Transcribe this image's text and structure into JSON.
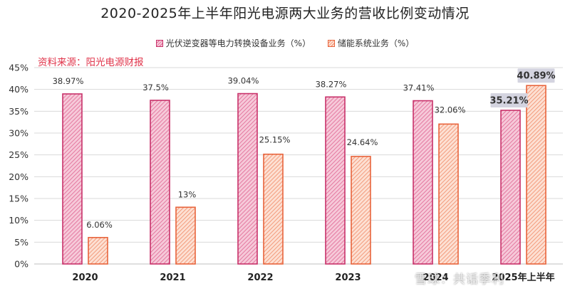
{
  "chart_data": {
    "type": "bar",
    "title": "2020-2025年上半年阳光电源两大业务的营收比例变动情况",
    "source": "资料来源：阳光电源财报",
    "watermark": "雪球：共话季利",
    "categories": [
      "2020",
      "2021",
      "2022",
      "2023",
      "2024",
      "2025年上半年"
    ],
    "series": [
      {
        "name": "光伏逆变器等电力转换设备业务（%）",
        "values": [
          38.97,
          37.5,
          39.04,
          38.27,
          37.41,
          35.21
        ],
        "labels": [
          "38.97%",
          "37.5%",
          "39.04%",
          "38.27%",
          "37.41%",
          "35.21%"
        ],
        "color": "#e06592",
        "border": "#c8326a",
        "light": "#f6c9d9"
      },
      {
        "name": "储能系统业务（%）",
        "values": [
          6.06,
          13,
          25.15,
          24.64,
          32.06,
          40.89
        ],
        "labels": [
          "6.06%",
          "13%",
          "25.15%",
          "24.64%",
          "32.06%",
          "40.89%"
        ],
        "color": "#f08a67",
        "border": "#e8643c",
        "light": "#fde0d3"
      }
    ],
    "yticks": [
      "0%",
      "5%",
      "10%",
      "15%",
      "20%",
      "25%",
      "30%",
      "35%",
      "40%",
      "45%"
    ],
    "ylim": [
      0,
      45
    ],
    "grid": true,
    "legend": "top-center",
    "highlight_category": "2025年上半年"
  }
}
